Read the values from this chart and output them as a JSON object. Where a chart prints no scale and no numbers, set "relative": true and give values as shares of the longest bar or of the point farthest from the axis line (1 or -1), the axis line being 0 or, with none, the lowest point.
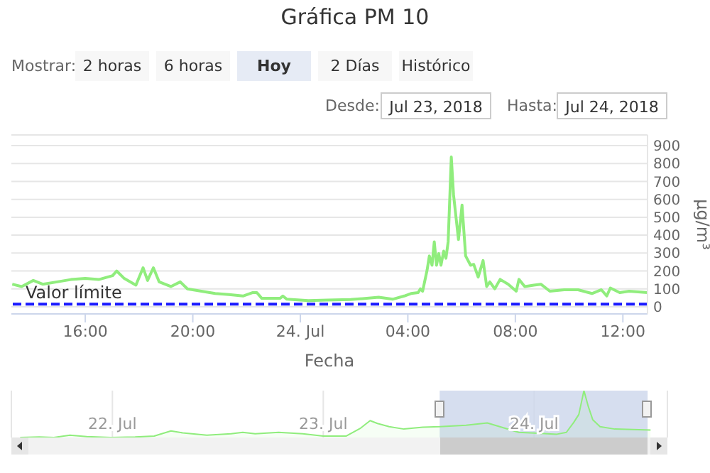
{
  "chart_data": [
    {
      "type": "line",
      "title": "Gráfica PM 10",
      "xlabel": "Fecha",
      "ylabel": "µg/m³",
      "annotations": [
        "Mostrar:",
        "2 horas",
        "6 horas",
        "Hoy",
        "2 Días",
        "Histórico",
        "Desde:",
        "Jul 23, 2018",
        "Hasta:",
        "Jul 24, 2018"
      ],
      "x": [
        "2018-07-23T13:17",
        "2018-07-23T13:38",
        "2018-07-23T14:04",
        "2018-07-23T14:25",
        "2018-07-23T14:57",
        "2018-07-23T15:28",
        "2018-07-23T16:00",
        "2018-07-23T16:30",
        "2018-07-23T17:01",
        "2018-07-23T17:10",
        "2018-07-23T17:27",
        "2018-07-23T17:53",
        "2018-07-23T18:09",
        "2018-07-23T18:19",
        "2018-07-23T18:32",
        "2018-07-23T18:45",
        "2018-07-23T19:11",
        "2018-07-23T19:32",
        "2018-07-23T19:48",
        "2018-07-23T20:19",
        "2018-07-23T20:50",
        "2018-07-23T21:21",
        "2018-07-23T21:52",
        "2018-07-23T22:13",
        "2018-07-23T22:23",
        "2018-07-23T22:34",
        "2018-07-23T23:15",
        "2018-07-23T23:21",
        "2018-07-23T23:30",
        "2018-07-24T00:18",
        "2018-07-24T01:00",
        "2018-07-24T01:52",
        "2018-07-24T02:55",
        "2018-07-24T03:26",
        "2018-07-24T03:52",
        "2018-07-24T04:07",
        "2018-07-24T04:23",
        "2018-07-24T04:28",
        "2018-07-24T04:33",
        "2018-07-24T04:43",
        "2018-07-24T04:48",
        "2018-07-24T04:54",
        "2018-07-24T04:59",
        "2018-07-24T05:04",
        "2018-07-24T05:09",
        "2018-07-24T05:14",
        "2018-07-24T05:20",
        "2018-07-24T05:25",
        "2018-07-24T05:30",
        "2018-07-24T05:37",
        "2018-07-24T05:42",
        "2018-07-24T05:53",
        "2018-07-24T06:01",
        "2018-07-24T06:09",
        "2018-07-24T06:20",
        "2018-07-24T06:27",
        "2018-07-24T06:37",
        "2018-07-24T06:48",
        "2018-07-24T06:56",
        "2018-07-24T07:03",
        "2018-07-24T07:14",
        "2018-07-24T07:26",
        "2018-07-24T07:44",
        "2018-07-24T08:02",
        "2018-07-24T08:08",
        "2018-07-24T08:21",
        "2018-07-24T08:41",
        "2018-07-24T08:57",
        "2018-07-24T09:17",
        "2018-07-24T09:49",
        "2018-07-24T10:20",
        "2018-07-24T10:51",
        "2018-07-24T11:12",
        "2018-07-24T11:24",
        "2018-07-24T11:32",
        "2018-07-24T11:53",
        "2018-07-24T12:14",
        "2018-07-24T12:55"
      ],
      "series": [
        {
          "color": "#90ed7d",
          "values": [
            126,
            113,
            147,
            126,
            139,
            152,
            158,
            152,
            174,
            200,
            158,
            121,
            218,
            147,
            218,
            139,
            113,
            139,
            100,
            87,
            74,
            68,
            60,
            79,
            79,
            47,
            47,
            60,
            42,
            34,
            37,
            40,
            53,
            42,
            60,
            74,
            79,
            100,
            87,
            205,
            284,
            232,
            363,
            232,
            297,
            232,
            311,
            271,
            363,
            837,
            626,
            376,
            568,
            284,
            232,
            237,
            166,
            258,
            113,
            139,
            100,
            153,
            126,
            87,
            153,
            113,
            121,
            126,
            87,
            95,
            95,
            74,
            95,
            60,
            105,
            79,
            87,
            79
          ]
        }
      ],
      "xlim": [
        "2018-07-23T13:15",
        "2018-07-24T12:55"
      ],
      "xticks": [
        {
          "value": "2018-07-23T16:00",
          "label": "16:00"
        },
        {
          "value": "2018-07-23T20:00",
          "label": "20:00"
        },
        {
          "value": "2018-07-24T00:00",
          "label": "24. Jul"
        },
        {
          "value": "2018-07-24T04:00",
          "label": "04:00"
        },
        {
          "value": "2018-07-24T08:00",
          "label": "08:00"
        },
        {
          "value": "2018-07-24T12:00",
          "label": "12:00"
        }
      ],
      "ylim": [
        -40,
        960
      ],
      "yticks": [
        0,
        100,
        200,
        300,
        400,
        500,
        600,
        700,
        800,
        900
      ],
      "ref_lines": [
        {
          "axis": "y",
          "value": 15,
          "label": "Valor límite",
          "color": "#1a1aff",
          "line_style": "dashed"
        }
      ],
      "grid": "y",
      "legend": false,
      "marker": "none",
      "line_style": "solid"
    },
    {
      "type": "area",
      "relative": true,
      "x": [
        "2018-07-21T13:30",
        "2018-07-21T15:40",
        "2018-07-21T17:20",
        "2018-07-21T19:10",
        "2018-07-21T21:05",
        "2018-07-21T23:50",
        "2018-07-22T02:35",
        "2018-07-22T04:45",
        "2018-07-22T06:40",
        "2018-07-22T08:00",
        "2018-07-22T10:45",
        "2018-07-22T13:30",
        "2018-07-22T14:50",
        "2018-07-22T16:15",
        "2018-07-22T18:55",
        "2018-07-22T21:40",
        "2018-07-23T00:00",
        "2018-07-23T02:35",
        "2018-07-23T04:15",
        "2018-07-23T05:20",
        "2018-07-23T06:10",
        "2018-07-23T07:30",
        "2018-07-23T09:10",
        "2018-07-23T11:20",
        "2018-07-23T13:15",
        "2018-07-23T16:15",
        "2018-07-23T18:40",
        "2018-07-23T20:05",
        "2018-07-23T22:15",
        "2018-07-24T00:25",
        "2018-07-24T02:35",
        "2018-07-24T03:40",
        "2018-07-24T04:30",
        "2018-07-24T05:05",
        "2018-07-24T05:40",
        "2018-07-24T06:10",
        "2018-07-24T06:40",
        "2018-07-24T07:30",
        "2018-07-24T09:10",
        "2018-07-24T13:15"
      ],
      "series": [
        {
          "color": "#90ed7d",
          "values": [
            0,
            0.01,
            0,
            0.05,
            0.02,
            0,
            0.01,
            0.03,
            0.14,
            0.1,
            0.05,
            0.08,
            0.11,
            0.08,
            0.11,
            0.08,
            0.03,
            0.03,
            0.2,
            0.36,
            0.3,
            0.23,
            0.18,
            0.22,
            0.23,
            0.26,
            0.31,
            0.23,
            0.11,
            0.09,
            0.07,
            0.11,
            0.32,
            0.49,
            1,
            0.66,
            0.38,
            0.23,
            0.18,
            0.16
          ]
        }
      ],
      "xlim": [
        "2018-07-21T12:30",
        "2018-07-24T15:10"
      ],
      "xticks": [
        {
          "value": "2018-07-22T00:00",
          "label": "22. Jul"
        },
        {
          "value": "2018-07-23T00:00",
          "label": "23. Jul"
        },
        {
          "value": "2018-07-24T00:00",
          "label": "24. Jul"
        }
      ],
      "bands": [
        {
          "axis": "x",
          "from": "2018-07-23T13:15",
          "to": "2018-07-24T12:55",
          "color": "#ccd6eb"
        }
      ],
      "grid": "x",
      "legend": false
    }
  ]
}
